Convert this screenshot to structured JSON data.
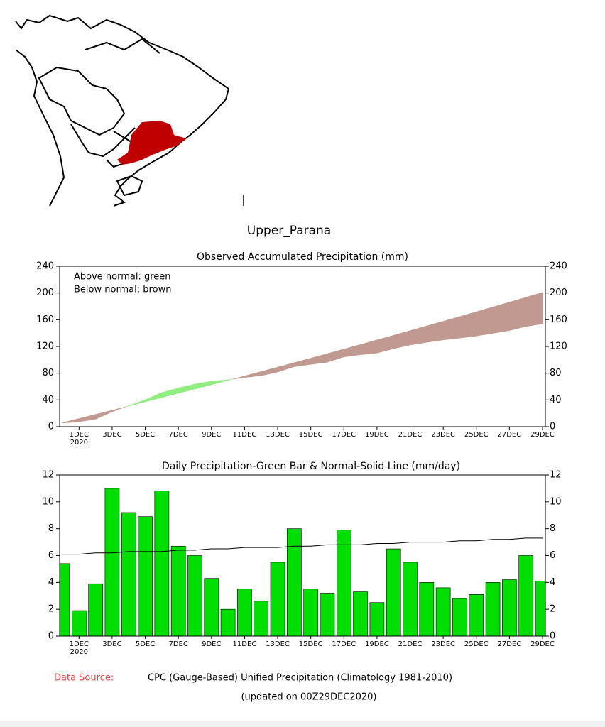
{
  "header": {
    "title": "Upper_Parana"
  },
  "chart_data": [
    {
      "type": "area",
      "title": "Observed Accumulated Precipitation (mm)",
      "annotations": [
        "Above normal: green",
        "Below normal: brown"
      ],
      "categories": [
        null,
        "1DEC",
        null,
        "3DEC",
        null,
        "5DEC",
        null,
        "7DEC",
        null,
        "9DEC",
        null,
        "11DEC",
        null,
        "13DEC",
        null,
        "15DEC",
        null,
        "17DEC",
        null,
        "19DEC",
        null,
        "21DEC",
        null,
        "23DEC",
        null,
        "25DEC",
        null,
        "27DEC",
        null,
        "29DEC"
      ],
      "year_label": "2020",
      "above_color": "#90ee80",
      "below_color": "#c09a90",
      "series": [
        {
          "values": [
            5.4,
            7.3,
            11.2,
            22.2,
            31.4,
            40.3,
            51.1,
            57.8,
            63.8,
            68.1,
            70.1,
            73.6,
            76.2,
            81.7,
            89.7,
            93.2,
            96.4,
            104.3,
            107.6,
            110.1,
            116.6,
            122.1,
            126.1,
            129.7,
            132.5,
            135.6,
            139.6,
            143.8,
            149.8,
            153.9
          ]
        },
        {
          "values": [
            6.1,
            12.2,
            18.4,
            24.6,
            30.9,
            37.2,
            43.5,
            49.9,
            56.3,
            62.8,
            69.3,
            75.9,
            82.5,
            89.1,
            95.8,
            102.5,
            109.3,
            116.1,
            122.9,
            129.8,
            136.7,
            143.7,
            150.7,
            157.7,
            164.8,
            171.9,
            179.1,
            186.3,
            193.6,
            200.9
          ]
        }
      ],
      "ylim": [
        0,
        240
      ],
      "yticks": [
        0,
        40,
        80,
        120,
        160,
        200,
        240
      ]
    },
    {
      "type": "bar",
      "title": "Daily Precipitation-Green Bar & Normal-Solid Line (mm/day)",
      "categories": [
        null,
        "1DEC",
        null,
        "3DEC",
        null,
        "5DEC",
        null,
        "7DEC",
        null,
        "9DEC",
        null,
        "11DEC",
        null,
        "13DEC",
        null,
        "15DEC",
        null,
        "17DEC",
        null,
        "19DEC",
        null,
        "21DEC",
        null,
        "23DEC",
        null,
        "25DEC",
        null,
        "27DEC",
        null,
        "29DEC"
      ],
      "year_label": "2020",
      "series": [
        {
          "type": "bar",
          "color": "#00dd00",
          "values": [
            5.4,
            1.9,
            3.9,
            11.0,
            9.2,
            8.9,
            10.8,
            6.7,
            6.0,
            4.3,
            2.0,
            3.5,
            2.6,
            5.5,
            8.0,
            3.5,
            3.2,
            7.9,
            3.3,
            2.5,
            6.5,
            5.5,
            4.0,
            3.6,
            2.8,
            3.1,
            4.0,
            4.2,
            6.0,
            4.1
          ]
        },
        {
          "type": "line",
          "color": "#000000",
          "values": [
            6.1,
            6.1,
            6.2,
            6.2,
            6.3,
            6.3,
            6.3,
            6.4,
            6.4,
            6.5,
            6.5,
            6.6,
            6.6,
            6.6,
            6.7,
            6.7,
            6.8,
            6.8,
            6.8,
            6.9,
            6.9,
            7.0,
            7.0,
            7.0,
            7.1,
            7.1,
            7.2,
            7.2,
            7.3,
            7.3
          ]
        }
      ],
      "ylim": [
        0,
        12
      ],
      "yticks": [
        0,
        2,
        4,
        6,
        8,
        10,
        12
      ]
    }
  ],
  "footer": {
    "source_label": "Data Source:",
    "source": "CPC (Gauge-Based) Unified Precipitation (Climatology 1981-2010)",
    "updated": "(updated on 00Z29DEC2020)"
  }
}
